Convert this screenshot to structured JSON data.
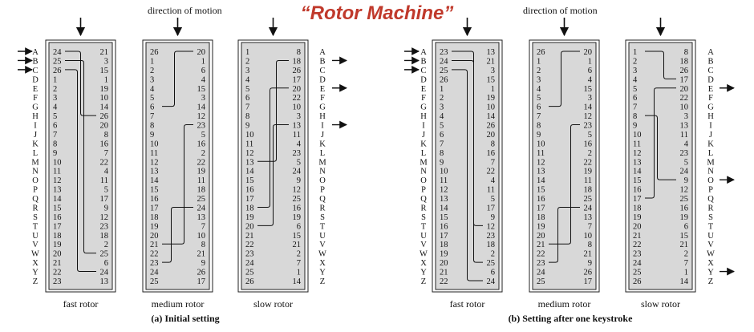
{
  "title": "“Rotor Machine”",
  "motion_label": "direction of motion",
  "rotor_names": [
    "fast rotor",
    "medium rotor",
    "slow rotor"
  ],
  "captions": [
    "(a) Initial setting",
    "(b) Setting after one keystroke"
  ],
  "letters": [
    "A",
    "B",
    "C",
    "D",
    "E",
    "F",
    "G",
    "H",
    "I",
    "J",
    "K",
    "L",
    "M",
    "N",
    "O",
    "P",
    "Q",
    "R",
    "S",
    "T",
    "U",
    "V",
    "W",
    "X",
    "Y",
    "Z"
  ],
  "panels": [
    {
      "rotors": [
        {
          "left": [
            24,
            25,
            26,
            1,
            2,
            3,
            4,
            5,
            6,
            7,
            8,
            9,
            10,
            11,
            12,
            13,
            14,
            15,
            16,
            17,
            18,
            19,
            20,
            21,
            22,
            23
          ],
          "right": [
            21,
            3,
            15,
            1,
            19,
            10,
            14,
            26,
            20,
            8,
            16,
            7,
            22,
            4,
            11,
            5,
            17,
            9,
            12,
            23,
            18,
            2,
            25,
            6,
            24,
            13
          ]
        },
        {
          "left": [
            26,
            1,
            2,
            3,
            4,
            5,
            6,
            7,
            8,
            9,
            10,
            11,
            12,
            13,
            14,
            15,
            16,
            17,
            18,
            19,
            20,
            21,
            22,
            23,
            24,
            25
          ],
          "right": [
            20,
            1,
            6,
            4,
            15,
            3,
            14,
            12,
            23,
            5,
            16,
            2,
            22,
            19,
            11,
            18,
            25,
            24,
            13,
            7,
            10,
            8,
            21,
            9,
            26,
            17
          ]
        },
        {
          "left": [
            1,
            2,
            3,
            4,
            5,
            6,
            7,
            8,
            9,
            10,
            11,
            12,
            13,
            14,
            15,
            16,
            17,
            18,
            19,
            20,
            21,
            22,
            23,
            24,
            25,
            26
          ],
          "right": [
            8,
            18,
            26,
            17,
            20,
            22,
            10,
            3,
            13,
            11,
            4,
            23,
            5,
            24,
            9,
            12,
            25,
            16,
            19,
            6,
            15,
            21,
            2,
            7,
            1,
            14
          ]
        }
      ]
    },
    {
      "rotors": [
        {
          "left": [
            23,
            24,
            25,
            26,
            1,
            2,
            3,
            4,
            5,
            6,
            7,
            8,
            9,
            10,
            11,
            12,
            13,
            14,
            15,
            16,
            17,
            18,
            19,
            20,
            21,
            22
          ],
          "right": [
            13,
            21,
            3,
            15,
            1,
            19,
            10,
            14,
            26,
            20,
            8,
            16,
            7,
            22,
            4,
            11,
            5,
            17,
            9,
            12,
            23,
            18,
            2,
            25,
            6,
            24
          ]
        },
        {
          "left": [
            26,
            1,
            2,
            3,
            4,
            5,
            6,
            7,
            8,
            9,
            10,
            11,
            12,
            13,
            14,
            15,
            16,
            17,
            18,
            19,
            20,
            21,
            22,
            23,
            24,
            25
          ],
          "right": [
            20,
            1,
            6,
            4,
            15,
            3,
            14,
            12,
            23,
            5,
            16,
            2,
            22,
            19,
            11,
            18,
            25,
            24,
            13,
            7,
            10,
            8,
            21,
            9,
            26,
            17
          ]
        },
        {
          "left": [
            1,
            2,
            3,
            4,
            5,
            6,
            7,
            8,
            9,
            10,
            11,
            12,
            13,
            14,
            15,
            16,
            17,
            18,
            19,
            20,
            21,
            22,
            23,
            24,
            25,
            26
          ],
          "right": [
            8,
            18,
            26,
            17,
            20,
            22,
            10,
            3,
            13,
            11,
            4,
            23,
            5,
            24,
            9,
            12,
            25,
            16,
            19,
            6,
            15,
            21,
            2,
            7,
            1,
            14
          ]
        }
      ]
    }
  ],
  "wires": [
    [
      [
        0,
        0,
        7
      ],
      [
        0,
        1,
        22
      ],
      [
        0,
        2,
        24
      ],
      [
        1,
        6,
        0
      ],
      [
        1,
        21,
        8
      ],
      [
        1,
        23,
        17
      ],
      [
        2,
        12,
        1
      ],
      [
        2,
        17,
        4
      ],
      [
        2,
        19,
        8
      ]
    ],
    [
      [
        0,
        0,
        19
      ],
      [
        0,
        1,
        23
      ],
      [
        0,
        2,
        25
      ],
      [
        1,
        6,
        0
      ],
      [
        1,
        21,
        8
      ],
      [
        1,
        23,
        17
      ],
      [
        2,
        0,
        3
      ],
      [
        2,
        7,
        14
      ],
      [
        2,
        16,
        4
      ]
    ]
  ],
  "input_rows": [
    [
      0,
      1,
      2
    ],
    [
      0,
      1,
      2
    ]
  ],
  "output_rows": [
    [
      1,
      4,
      8
    ],
    [
      4,
      14,
      24
    ]
  ]
}
